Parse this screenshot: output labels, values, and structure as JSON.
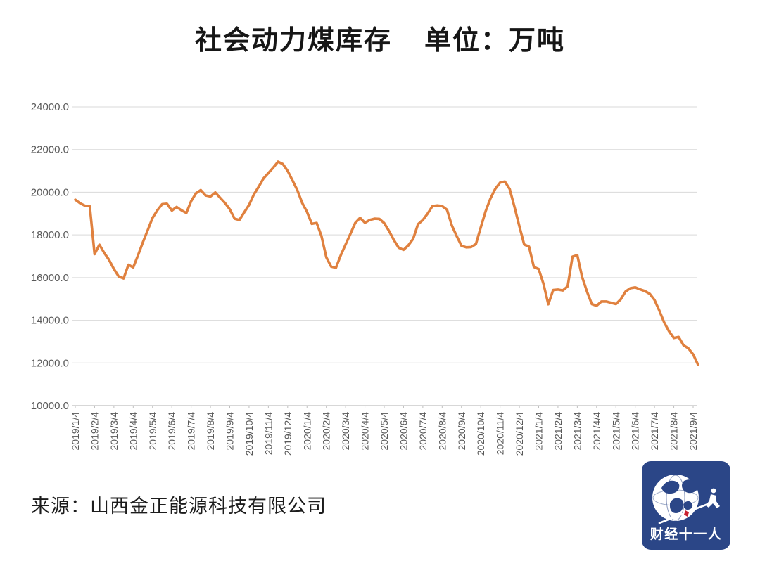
{
  "page": {
    "title": "社会动力煤库存",
    "unit_label": "单位：万吨",
    "source_label": "来源：山西金正能源科技有限公司"
  },
  "logo": {
    "text": "财经十一人",
    "bg_color": "#2B4687",
    "accent_color": "#C8202F"
  },
  "chart_data": {
    "type": "line",
    "title": "社会动力煤库存",
    "unit": "万吨",
    "series_name": "社会动力煤库存（万吨）",
    "legend": "none",
    "grid": "horizontal",
    "line_color": "#E0813F",
    "grid_color": "#D9D9D9",
    "axis_line_color": "#BFBFBF",
    "axis_label_color": "#595959",
    "ylim": [
      10000,
      24000
    ],
    "y_step": 2000,
    "y_tick_labels": [
      "24000.0",
      "22000.0",
      "20000.0",
      "18000.0",
      "16000.0",
      "14000.0",
      "12000.0",
      "10000.0"
    ],
    "x_tick_labels": [
      "2019/1/4",
      "2019/2/4",
      "2019/3/4",
      "2019/4/4",
      "2019/5/4",
      "2019/6/4",
      "2019/7/4",
      "2019/8/4",
      "2019/9/4",
      "2019/10/4",
      "2019/11/4",
      "2019/12/4",
      "2020/1/4",
      "2020/2/4",
      "2020/3/4",
      "2020/4/4",
      "2020/5/4",
      "2020/6/4",
      "2020/7/4",
      "2020/8/4",
      "2020/9/4",
      "2020/10/4",
      "2020/11/4",
      "2020/12/4",
      "2021/1/4",
      "2021/2/4",
      "2021/3/4",
      "2021/4/4",
      "2021/5/4",
      "2021/6/4",
      "2021/7/4",
      "2021/8/4",
      "2021/9/4"
    ],
    "points_per_month": 4,
    "values": [
      19650,
      19480,
      19370,
      19340,
      17100,
      17540,
      17150,
      16830,
      16400,
      16050,
      15960,
      16600,
      16480,
      17050,
      17650,
      18220,
      18800,
      19150,
      19440,
      19460,
      19140,
      19310,
      19150,
      19030,
      19580,
      19950,
      20100,
      19850,
      19800,
      19990,
      19740,
      19500,
      19200,
      18760,
      18700,
      19060,
      19400,
      19900,
      20260,
      20650,
      20900,
      21150,
      21430,
      21320,
      21000,
      20550,
      20100,
      19500,
      19080,
      18520,
      18560,
      17950,
      16950,
      16520,
      16460,
      17050,
      17550,
      18050,
      18560,
      18800,
      18570,
      18700,
      18760,
      18750,
      18550,
      18180,
      17760,
      17400,
      17300,
      17510,
      17820,
      18500,
      18700,
      19000,
      19350,
      19380,
      19350,
      19180,
      18450,
      17950,
      17490,
      17420,
      17430,
      17570,
      18350,
      19100,
      19700,
      20160,
      20450,
      20500,
      20150,
      19300,
      18400,
      17550,
      17450,
      16500,
      16400,
      15700,
      14750,
      15420,
      15440,
      15400,
      15590,
      16980,
      17050,
      16030,
      15350,
      14760,
      14680,
      14880,
      14880,
      14820,
      14760,
      14980,
      15350,
      15500,
      15540,
      15450,
      15370,
      15240,
      14950,
      14450,
      13900,
      13490,
      13170,
      13220,
      12830,
      12690,
      12400,
      11920
    ]
  }
}
